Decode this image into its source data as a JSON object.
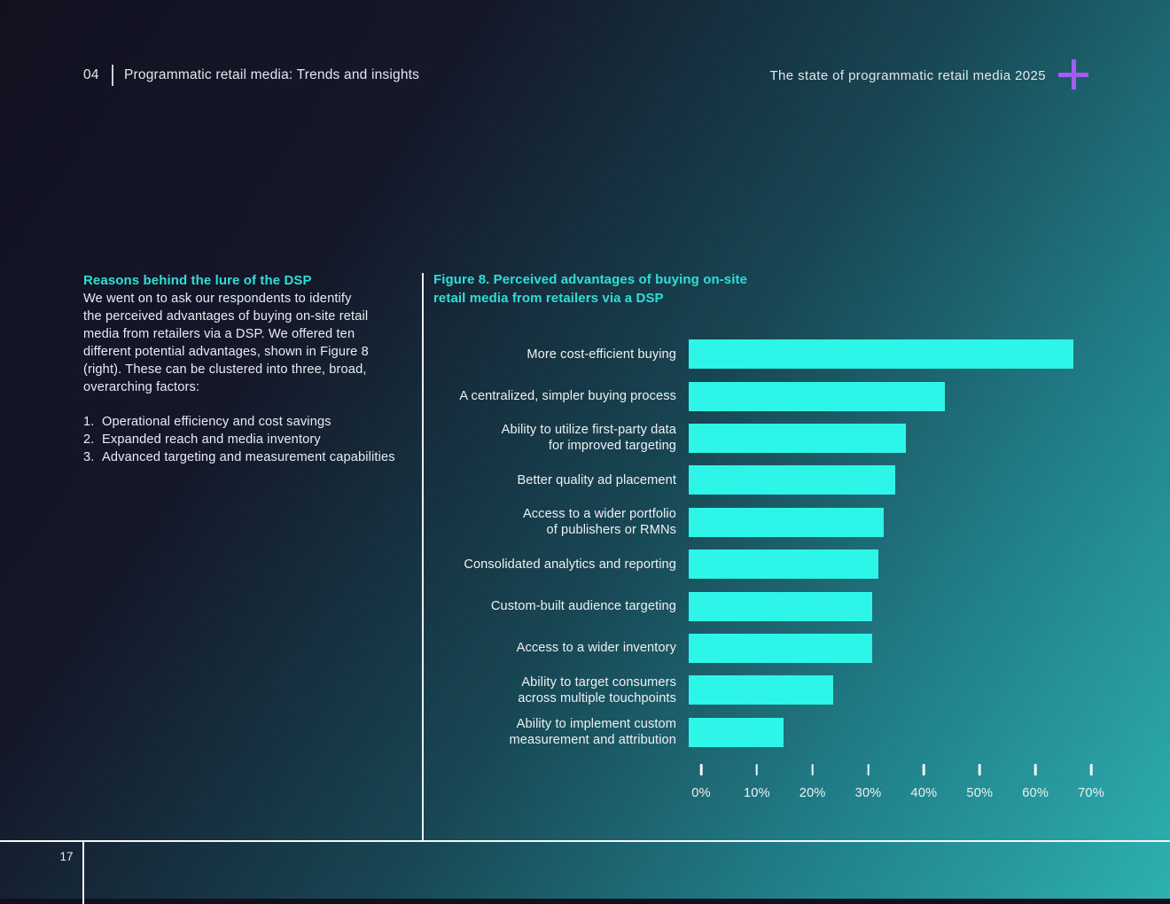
{
  "header": {
    "chapter_number": "04",
    "chapter_title": "Programmatic retail media: Trends and insights",
    "report_title": "The state of programmatic retail media 2025",
    "brand_icon": "plus-icon"
  },
  "left_column": {
    "heading": "Reasons behind the lure of the DSP",
    "paragraph": "We went on to ask our respondents to identify\nthe perceived advantages of buying on-site retail\nmedia from retailers via a DSP. We offered ten\ndifferent potential advantages, shown in Figure 8\n(right). These can be clustered into three, broad,\noverarching factors:",
    "list_items": [
      "Operational efficiency and cost savings",
      "Expanded reach and media inventory",
      "Advanced targeting and measurement capabilities"
    ]
  },
  "figure": {
    "title": "Figure 8. Perceived advantages of buying on-site\nretail media from retailers via a DSP"
  },
  "chart_data": {
    "type": "bar",
    "orientation": "horizontal",
    "title": "Figure 8. Perceived advantages of buying on-site retail media from retailers via a DSP",
    "categories": [
      "More cost-efficient buying",
      "A centralized, simpler buying process",
      "Ability to utilize first-party data\nfor improved targeting",
      "Better quality ad placement",
      "Access to a wider portfolio\nof publishers or RMNs",
      "Consolidated analytics and reporting",
      "Custom-built audience targeting",
      "Access to a wider inventory",
      "Ability to target consumers\nacross multiple touchpoints",
      "Ability to implement custom\nmeasurement and attribution"
    ],
    "values": [
      69,
      46,
      39,
      37,
      35,
      34,
      33,
      33,
      26,
      17
    ],
    "unit": "%",
    "x_ticks": [
      "0%",
      "10%",
      "20%",
      "30%",
      "40%",
      "50%",
      "60%",
      "70%"
    ],
    "xlim": [
      0,
      70
    ],
    "xlabel": "",
    "ylabel": "",
    "grid": false,
    "legend": false,
    "bar_color": "#2df5e8"
  },
  "footer": {
    "page_number": "17"
  },
  "colors": {
    "bar_cyan": "#2df5e8",
    "heading_cyan": "#2fdfd6",
    "accent_purple": "#a55cf3",
    "bg_dark": "#121120",
    "bg_teal": "#2db1b1"
  }
}
